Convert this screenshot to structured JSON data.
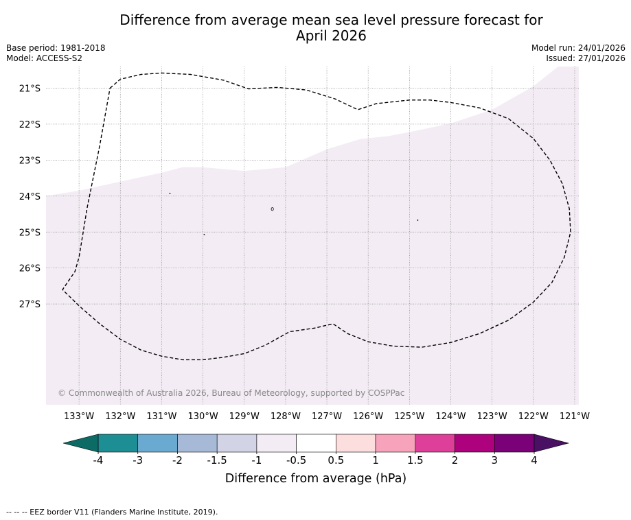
{
  "title_line1": "Difference from average mean sea level pressure forecast for",
  "title_line2": "April 2026",
  "meta": {
    "base_period": "Base period: 1981-2018",
    "model": "Model: ACCESS-S2",
    "model_run": "Model run: 24/01/2026",
    "issued": "Issued: 27/01/2026"
  },
  "copyright": "© Commonwealth of Australia 2026, Bureau of Meteorology, supported by COSPPac",
  "footnote": "--  --  -- EEZ border V11 (Flanders Marine Institute, 2019).",
  "map": {
    "lon_range": [
      -133.8,
      -120.9
    ],
    "lat_range": [
      -29.8,
      -20.4
    ],
    "lon_ticks": [
      {
        "value": -133,
        "label": "133°W"
      },
      {
        "value": -132,
        "label": "132°W"
      },
      {
        "value": -131,
        "label": "131°W"
      },
      {
        "value": -130,
        "label": "130°W"
      },
      {
        "value": -129,
        "label": "129°W"
      },
      {
        "value": -128,
        "label": "128°W"
      },
      {
        "value": -127,
        "label": "127°W"
      },
      {
        "value": -126,
        "label": "126°W"
      },
      {
        "value": -125,
        "label": "125°W"
      },
      {
        "value": -124,
        "label": "124°W"
      },
      {
        "value": -123,
        "label": "123°W"
      },
      {
        "value": -122,
        "label": "122°W"
      },
      {
        "value": -121,
        "label": "121°W"
      }
    ],
    "lat_ticks": [
      {
        "value": -21,
        "label": "21°S"
      },
      {
        "value": -22,
        "label": "22°S"
      },
      {
        "value": -23,
        "label": "23°S"
      },
      {
        "value": -24,
        "label": "24°S"
      },
      {
        "value": -25,
        "label": "25°S"
      },
      {
        "value": -26,
        "label": "26°S"
      },
      {
        "value": -27,
        "label": "27°S"
      }
    ],
    "shaded_region": {
      "category": "-1 to -0.5",
      "color": "#f3ecf4",
      "boundary": [
        [
          -133.8,
          -24.0
        ],
        [
          -133.0,
          -23.85
        ],
        [
          -132.0,
          -23.6
        ],
        [
          -131.0,
          -23.35
        ],
        [
          -130.5,
          -23.2
        ],
        [
          -130.0,
          -23.2
        ],
        [
          -129.5,
          -23.25
        ],
        [
          -129.0,
          -23.3
        ],
        [
          -128.0,
          -23.2
        ],
        [
          -127.0,
          -22.7
        ],
        [
          -126.2,
          -22.42
        ],
        [
          -125.5,
          -22.33
        ],
        [
          -125.0,
          -22.22
        ],
        [
          -124.0,
          -21.98
        ],
        [
          -123.0,
          -21.6
        ],
        [
          -122.0,
          -20.95
        ],
        [
          -121.4,
          -20.4
        ]
      ]
    },
    "eez_border": [
      [
        -132.25,
        -21.0
      ],
      [
        -132.0,
        -20.75
      ],
      [
        -131.5,
        -20.62
      ],
      [
        -131.0,
        -20.58
      ],
      [
        -130.3,
        -20.62
      ],
      [
        -129.5,
        -20.78
      ],
      [
        -128.9,
        -21.02
      ],
      [
        -128.2,
        -20.98
      ],
      [
        -127.5,
        -21.05
      ],
      [
        -126.8,
        -21.3
      ],
      [
        -126.25,
        -21.6
      ],
      [
        -125.8,
        -21.43
      ],
      [
        -125.0,
        -21.33
      ],
      [
        -124.5,
        -21.33
      ],
      [
        -124.0,
        -21.4
      ],
      [
        -123.3,
        -21.55
      ],
      [
        -122.6,
        -21.85
      ],
      [
        -122.0,
        -22.4
      ],
      [
        -121.6,
        -23.0
      ],
      [
        -121.3,
        -23.65
      ],
      [
        -121.13,
        -24.35
      ],
      [
        -121.1,
        -25.0
      ],
      [
        -121.25,
        -25.7
      ],
      [
        -121.55,
        -26.4
      ],
      [
        -122.0,
        -26.95
      ],
      [
        -122.6,
        -27.45
      ],
      [
        -123.3,
        -27.82
      ],
      [
        -124.0,
        -28.07
      ],
      [
        -124.7,
        -28.2
      ],
      [
        -125.4,
        -28.17
      ],
      [
        -126.0,
        -28.05
      ],
      [
        -126.5,
        -27.82
      ],
      [
        -126.85,
        -27.55
      ],
      [
        -127.3,
        -27.67
      ],
      [
        -127.9,
        -27.77
      ],
      [
        -128.5,
        -28.15
      ],
      [
        -129.0,
        -28.38
      ],
      [
        -129.5,
        -28.48
      ],
      [
        -130.0,
        -28.55
      ],
      [
        -130.5,
        -28.55
      ],
      [
        -131.0,
        -28.45
      ],
      [
        -131.5,
        -28.28
      ],
      [
        -132.0,
        -27.98
      ],
      [
        -132.5,
        -27.55
      ],
      [
        -133.0,
        -27.05
      ],
      [
        -133.4,
        -26.6
      ],
      [
        -133.1,
        -26.1
      ],
      [
        -133.0,
        -25.7
      ],
      [
        -132.8,
        -24.3
      ],
      [
        -132.5,
        -22.6
      ],
      [
        -132.25,
        -21.0
      ]
    ],
    "islands": [
      {
        "lon": -128.32,
        "lat": -24.36,
        "shape": "ring"
      },
      {
        "lon": -130.8,
        "lat": -23.93,
        "shape": "dot"
      },
      {
        "lon": -129.97,
        "lat": -25.07,
        "shape": "dot"
      },
      {
        "lon": -124.8,
        "lat": -24.67,
        "shape": "dot"
      }
    ]
  },
  "colorbar": {
    "label": "Difference from average (hPa)",
    "tick_labels": [
      "-4",
      "-3",
      "-2",
      "-1.5",
      "-1",
      "-0.5",
      "0.5",
      "1",
      "1.5",
      "2",
      "3",
      "4"
    ],
    "under_color": "#0d6b65",
    "over_color": "#4a1063",
    "colors": [
      "#1d8f94",
      "#6aaad0",
      "#a6bad8",
      "#d3d3e6",
      "#f3ecf4",
      "#ffffff",
      "#fddede",
      "#f7a3bb",
      "#de3f98",
      "#ae017e",
      "#7a0177"
    ]
  }
}
